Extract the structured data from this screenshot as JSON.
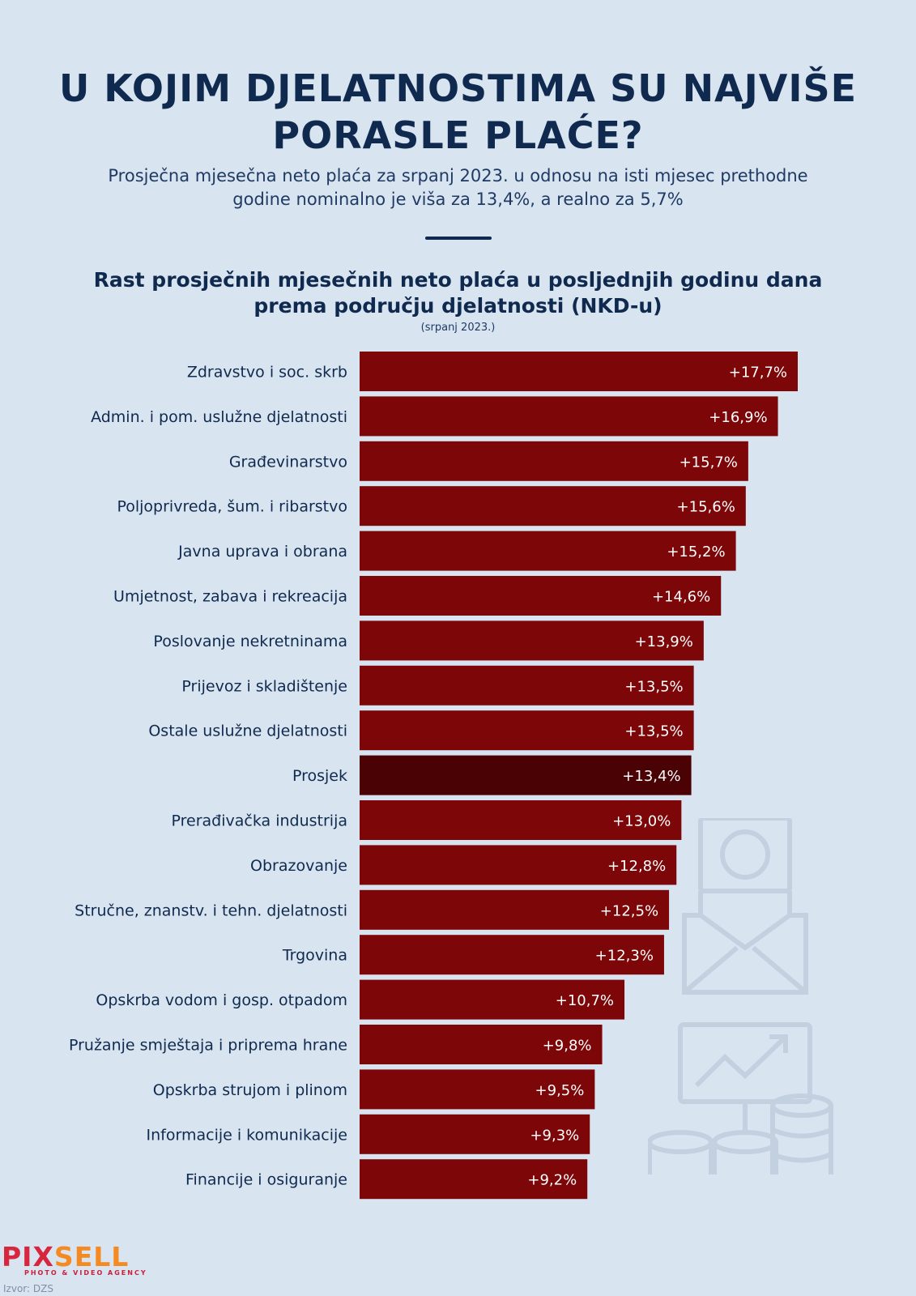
{
  "header": {
    "title_line1": "U KOJIM DJELATNOSTIMA SU NAJVIŠE",
    "title_line2": "PORASLE PLAĆE?",
    "subtitle_line1": "Prosječna mjesečna neto plaća za srpanj 2023. u odnosu na isti mjesec prethodne",
    "subtitle_line2": "godine nominalno je viša za 13,4%, a realno za 5,7%"
  },
  "chart_data": {
    "type": "bar",
    "orientation": "horizontal",
    "title_line1": "Rast prosječnih mjesečnih neto plaća u posljednjih godinu dana",
    "title_line2": "prema području djelatnosti (NKD-u)",
    "subtitle": "(srpanj 2023.)",
    "categories": [
      "Zdravstvo i soc. skrb",
      "Admin. i pom. uslužne djelatnosti",
      "Građevinarstvo",
      "Poljoprivreda, šum. i ribarstvo",
      "Javna uprava i obrana",
      "Umjetnost, zabava i rekreacija",
      "Poslovanje nekretninama",
      "Prijevoz i skladištenje",
      "Ostale uslužne djelatnosti",
      "Prosjek",
      "Prerađivačka industrija",
      "Obrazovanje",
      "Stručne, znanstv. i tehn. djelatnosti",
      "Trgovina",
      "Opskrba vodom i gosp. otpadom",
      "Pružanje smještaja i priprema hrane",
      "Opskrba strujom i plinom",
      "Informacije i komunikacije",
      "Financije i osiguranje"
    ],
    "values": [
      17.7,
      16.9,
      15.7,
      15.6,
      15.2,
      14.6,
      13.9,
      13.5,
      13.5,
      13.4,
      13.0,
      12.8,
      12.5,
      12.3,
      10.7,
      9.8,
      9.5,
      9.3,
      9.2
    ],
    "data_labels": [
      "+17,7%",
      "+16,9%",
      "+15,7%",
      "+15,6%",
      "+15,2%",
      "+14,6%",
      "+13,9%",
      "+13,5%",
      "+13,5%",
      "+13,4%",
      "+13,0%",
      "+12,8%",
      "+12,5%",
      "+12,3%",
      "+10,7%",
      "+9,8%",
      "+9,5%",
      "+9,3%",
      "+9,2%"
    ],
    "highlight_category": "Prosjek",
    "xlim": [
      0,
      17.7
    ],
    "grid": false,
    "colors": {
      "bar": "#7d0608",
      "highlight": "#4a0204",
      "label": "#ffffff"
    }
  },
  "footer": {
    "logo_part1": "PIX",
    "logo_part2": "SELL",
    "logo_tagline": "PHOTO & VIDEO AGENCY",
    "source": "Izvor: DZS"
  },
  "colors": {
    "background": "#d9e4f1",
    "text": "#0f2a4e",
    "logo_red": "#d7263d",
    "logo_orange": "#f58a23"
  }
}
